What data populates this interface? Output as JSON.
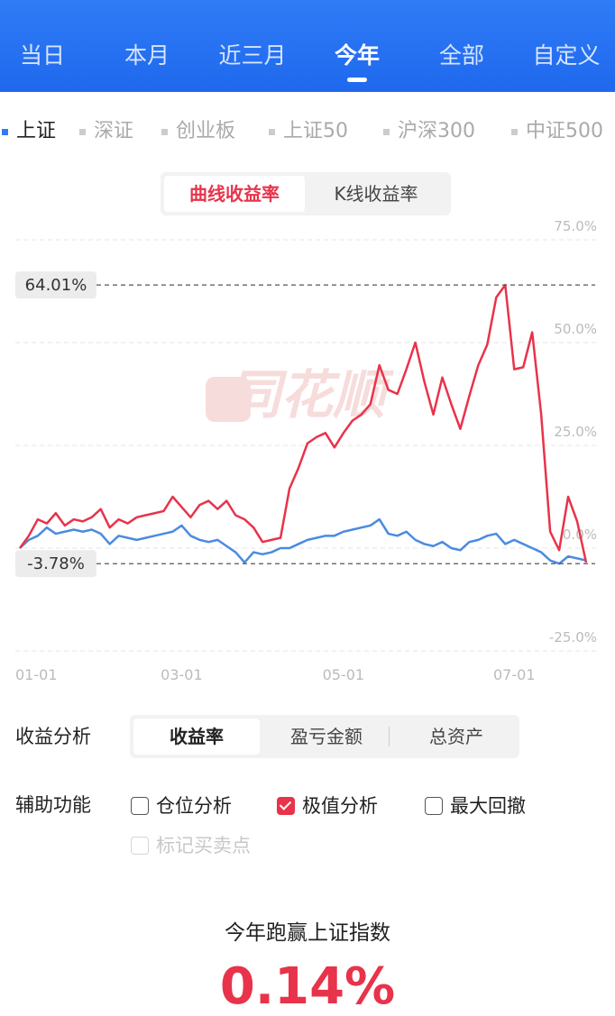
{
  "tabs": [
    "当日",
    "本月",
    "近三月",
    "今年",
    "全部",
    "自定义"
  ],
  "active_tab": 3,
  "filters": [
    "上证",
    "深证",
    "创业板",
    "上证50",
    "沪深300",
    "中证500"
  ],
  "active_filter": 0,
  "chart_modes": [
    "曲线收益率",
    "K线收益率"
  ],
  "chart_data": {
    "type": "line",
    "watermark": "同花顺",
    "categories": [
      "01-01",
      null,
      null,
      null,
      null,
      null,
      null,
      null,
      null,
      null,
      null,
      null,
      null,
      null,
      null,
      null,
      null,
      null,
      "03-01",
      null,
      null,
      null,
      null,
      null,
      null,
      null,
      null,
      null,
      null,
      null,
      null,
      null,
      null,
      null,
      null,
      null,
      "05-01",
      null,
      null,
      null,
      null,
      null,
      null,
      null,
      null,
      null,
      null,
      null,
      null,
      null,
      null,
      null,
      null,
      null,
      null,
      "07-01",
      null,
      null,
      null,
      null,
      null,
      null,
      null,
      null
    ],
    "series": [
      {
        "color": "#e8334a",
        "values": [
          0,
          3,
          7,
          6,
          8.5,
          5.5,
          7,
          6.5,
          7.5,
          9.5,
          5,
          7,
          6,
          7.5,
          8,
          8.5,
          9,
          12.5,
          10,
          7.5,
          10.5,
          11.5,
          9.5,
          11.5,
          8,
          7,
          5,
          1.5,
          2,
          2.5,
          14.5,
          19.5,
          25.5,
          27,
          28,
          24.5,
          28,
          31,
          32.5,
          35,
          44.5,
          38.5,
          37.5,
          43.5,
          50,
          40.5,
          32.5,
          41.5,
          35,
          29,
          37,
          44.5,
          49.5,
          61,
          64.01,
          43.5,
          44,
          52.5,
          32.5,
          4,
          -0.5,
          12.5,
          6.5,
          -3.5
        ]
      },
      {
        "color": "#4a8be0",
        "values": [
          0,
          2,
          3,
          5,
          3.5,
          4,
          4.5,
          4,
          4.5,
          3.5,
          1,
          3,
          2.5,
          2,
          2.5,
          3,
          3.5,
          4,
          5.5,
          3,
          2,
          1.5,
          2,
          0.5,
          -1,
          -3.5,
          -1,
          -1.5,
          -1,
          0,
          0,
          1,
          2,
          2.5,
          3,
          3,
          4,
          4.5,
          5,
          5.5,
          7,
          3.5,
          3,
          4,
          2,
          1,
          0.5,
          1.5,
          0,
          -0.5,
          1.5,
          2,
          3,
          3.5,
          1,
          2,
          1,
          0,
          -1,
          -3,
          -3.78,
          -2,
          -2.5,
          -3
        ]
      }
    ],
    "ylim": [
      -25,
      75
    ],
    "yticks": [
      {
        "value": -25,
        "label": "-25.0%"
      },
      {
        "value": 0,
        "label": "0.0%"
      },
      {
        "value": 25,
        "label": "25.0%"
      },
      {
        "value": 50,
        "label": "50.0%"
      },
      {
        "value": 75,
        "label": "75.0%"
      }
    ],
    "grid": true,
    "annotations": [
      {
        "label": "64.01%",
        "value": 64.01
      },
      {
        "label": "-3.78%",
        "value": -3.78
      }
    ]
  },
  "analysis": {
    "label": "收益分析",
    "options": [
      "收益率",
      "盈亏金额",
      "总资产"
    ],
    "active": 0
  },
  "aux": {
    "label": "辅助功能",
    "options": [
      {
        "label": "仓位分析",
        "checked": false,
        "disabled": false
      },
      {
        "label": "极值分析",
        "checked": true,
        "disabled": false
      },
      {
        "label": "最大回撤",
        "checked": false,
        "disabled": false
      },
      {
        "label": "标记买卖点",
        "checked": false,
        "disabled": true
      }
    ]
  },
  "result": {
    "title": "今年跑赢上证指数",
    "value": "0.14%"
  }
}
